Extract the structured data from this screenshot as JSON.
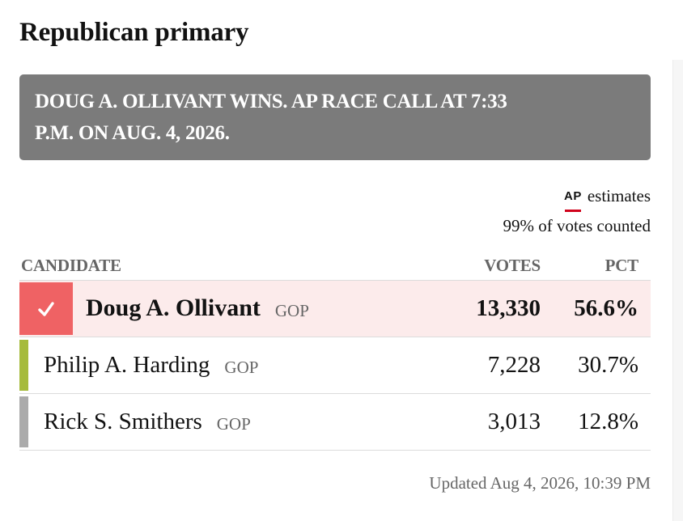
{
  "title": "Republican primary",
  "banner": {
    "text": "Doug A. Ollivant wins. AP race call at 7:33 p.m. on Aug. 4, 2026."
  },
  "source": {
    "logo": "AP",
    "label": "estimates",
    "votes_counted": "99% of votes counted"
  },
  "table": {
    "headers": {
      "candidate": "CANDIDATE",
      "votes": "VOTES",
      "pct": "PCT"
    },
    "rows": [
      {
        "name": "Doug A. Ollivant",
        "party": "GOP",
        "votes": "13,330",
        "pct": "56.6%",
        "winner": true,
        "color": "#ef6264",
        "icon": "check-icon"
      },
      {
        "name": "Philip A. Harding",
        "party": "GOP",
        "votes": "7,228",
        "pct": "30.7%",
        "winner": false,
        "color": "#a6bb3c"
      },
      {
        "name": "Rick S. Smithers",
        "party": "GOP",
        "votes": "3,013",
        "pct": "12.8%",
        "winner": false,
        "color": "#ababab"
      }
    ]
  },
  "updated": "Updated Aug 4, 2026, 10:39 PM"
}
